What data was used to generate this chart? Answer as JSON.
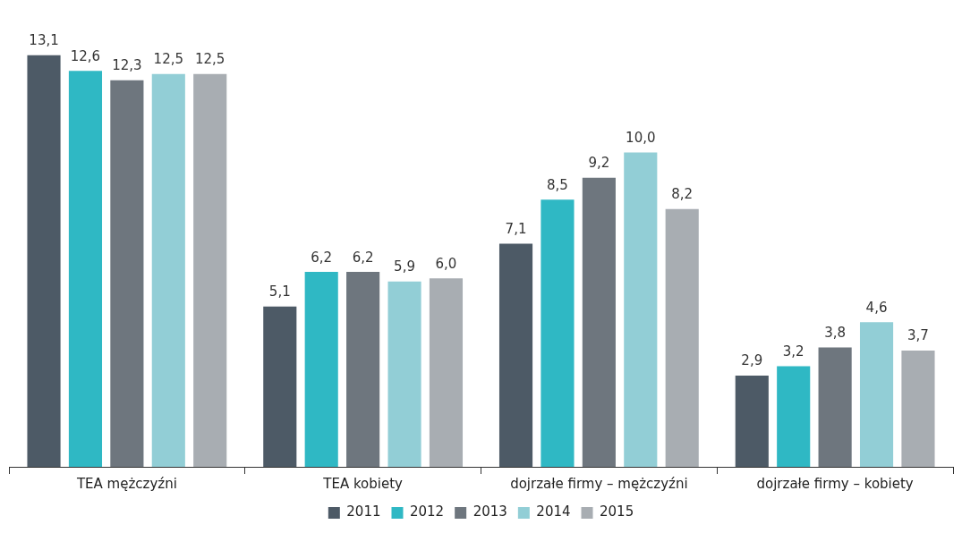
{
  "chart_data": {
    "type": "bar",
    "categories": [
      "TEA mężczyźni",
      "TEA kobiety",
      "dojrzałe firmy – mężczyźni",
      "dojrzałe firmy – kobiety"
    ],
    "series": [
      {
        "name": "2011",
        "color": "#4d5a66",
        "values": [
          13.1,
          5.1,
          7.1,
          2.9
        ],
        "value_labels": [
          "13,1",
          "5,1",
          "7,1",
          "2,9"
        ]
      },
      {
        "name": "2012",
        "color": "#2fb8c4",
        "values": [
          12.6,
          6.2,
          8.5,
          3.2
        ],
        "value_labels": [
          "12,6",
          "6,2",
          "8,5",
          "3,2"
        ]
      },
      {
        "name": "2013",
        "color": "#6e767e",
        "values": [
          12.3,
          6.2,
          9.2,
          3.8
        ],
        "value_labels": [
          "12,3",
          "6,2",
          "9,2",
          "3,8"
        ]
      },
      {
        "name": "2014",
        "color": "#92ced6",
        "values": [
          12.5,
          5.9,
          10.0,
          4.6
        ],
        "value_labels": [
          "12,5",
          "5,9",
          "10,0",
          "4,6"
        ]
      },
      {
        "name": "2015",
        "color": "#a8adb2",
        "values": [
          12.5,
          6.0,
          8.2,
          3.7
        ],
        "value_labels": [
          "12,5",
          "6,0",
          "8,2",
          "3,7"
        ]
      }
    ],
    "legend": "bottom",
    "grid": false,
    "tick_labels": "x"
  }
}
